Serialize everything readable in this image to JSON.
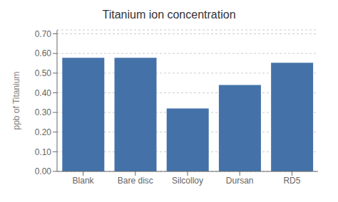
{
  "chart_data": {
    "type": "bar",
    "title": "Titanium ion concentration",
    "categories": [
      "Blank",
      "Bare disc",
      "Silcolloy",
      "Dursan",
      "RD5"
    ],
    "values": [
      0.578,
      0.578,
      0.32,
      0.44,
      0.553
    ],
    "color": "#4472a8",
    "ylabel": "ppb of Titanium",
    "ylim": [
      0.0,
      0.72
    ],
    "yticks": [
      {
        "value": 0.0,
        "label": "0.00"
      },
      {
        "value": 0.1,
        "label": "0.10"
      },
      {
        "value": 0.2,
        "label": "0.20"
      },
      {
        "value": 0.3,
        "label": "0.30"
      },
      {
        "value": 0.4,
        "label": "0.40"
      },
      {
        "value": 0.5,
        "label": "0.50"
      },
      {
        "value": 0.6,
        "label": "0.60"
      },
      {
        "value": 0.7,
        "label": "0.70"
      }
    ],
    "grid": true
  }
}
